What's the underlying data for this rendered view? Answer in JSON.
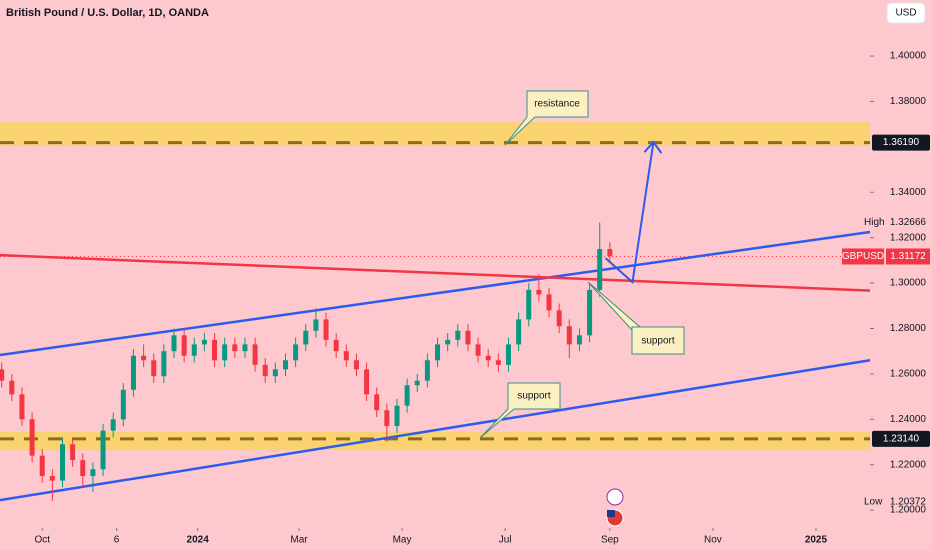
{
  "chart_data": {
    "type": "candlestick",
    "title": "British Pound / U.S. Dollar, 1D, OANDA",
    "currency": "USD",
    "symbol": "GBPUSD",
    "xlim": [
      -117,
      398
    ],
    "ylim": [
      1.193,
      1.4247
    ],
    "xticks": [
      {
        "value": -92,
        "label": "Oct"
      },
      {
        "value": -48,
        "label": "6"
      },
      {
        "value": 0,
        "label": "2024"
      },
      {
        "value": 60,
        "label": "Mar"
      },
      {
        "value": 121,
        "label": "May"
      },
      {
        "value": 182,
        "label": "Jul"
      },
      {
        "value": 244,
        "label": "Sep"
      },
      {
        "value": 305,
        "label": "Nov"
      },
      {
        "value": 366,
        "label": "2025"
      }
    ],
    "yticks": [
      {
        "value": 1.2,
        "label": "1.20000"
      },
      {
        "value": 1.22,
        "label": "1.22000"
      },
      {
        "value": 1.24,
        "label": "1.24000"
      },
      {
        "value": 1.26,
        "label": "1.26000"
      },
      {
        "value": 1.28,
        "label": "1.28000"
      },
      {
        "value": 1.3,
        "label": "1.30000"
      },
      {
        "value": 1.32,
        "label": "1.32000"
      },
      {
        "value": 1.34,
        "label": "1.34000"
      },
      {
        "value": 1.38,
        "label": "1.38000"
      },
      {
        "value": 1.4,
        "label": "1.40000"
      }
    ],
    "up_color": "#089981",
    "down_color": "#f23645",
    "x": [
      -116,
      -110,
      -104,
      -98,
      -92,
      -86,
      -80,
      -74,
      -68,
      -62,
      -56,
      -50,
      -44,
      -38,
      -32,
      -26,
      -20,
      -14,
      -8,
      -2,
      4,
      10,
      16,
      22,
      28,
      34,
      40,
      46,
      52,
      58,
      64,
      70,
      76,
      82,
      88,
      94,
      100,
      106,
      112,
      118,
      124,
      130,
      136,
      142,
      148,
      154,
      160,
      166,
      172,
      178,
      184,
      190,
      196,
      202,
      208,
      214,
      220,
      226,
      232,
      238,
      244
    ],
    "candles": [
      [
        1.262,
        1.265,
        1.254,
        1.257
      ],
      [
        1.257,
        1.26,
        1.248,
        1.251
      ],
      [
        1.251,
        1.254,
        1.237,
        1.24
      ],
      [
        1.24,
        1.243,
        1.221,
        1.224
      ],
      [
        1.224,
        1.227,
        1.212,
        1.215
      ],
      [
        1.215,
        1.218,
        1.204,
        1.213
      ],
      [
        1.213,
        1.232,
        1.21,
        1.229
      ],
      [
        1.229,
        1.232,
        1.219,
        1.222
      ],
      [
        1.222,
        1.225,
        1.21,
        1.215
      ],
      [
        1.215,
        1.221,
        1.208,
        1.218
      ],
      [
        1.218,
        1.238,
        1.215,
        1.235
      ],
      [
        1.235,
        1.243,
        1.232,
        1.24
      ],
      [
        1.24,
        1.256,
        1.237,
        1.253
      ],
      [
        1.253,
        1.271,
        1.25,
        1.268
      ],
      [
        1.268,
        1.273,
        1.263,
        1.266
      ],
      [
        1.266,
        1.269,
        1.256,
        1.259
      ],
      [
        1.259,
        1.273,
        1.256,
        1.27
      ],
      [
        1.27,
        1.28,
        1.267,
        1.277
      ],
      [
        1.277,
        1.28,
        1.265,
        1.268
      ],
      [
        1.268,
        1.276,
        1.265,
        1.273
      ],
      [
        1.273,
        1.278,
        1.27,
        1.275
      ],
      [
        1.275,
        1.278,
        1.263,
        1.266
      ],
      [
        1.266,
        1.276,
        1.263,
        1.273
      ],
      [
        1.273,
        1.276,
        1.267,
        1.27
      ],
      [
        1.27,
        1.276,
        1.267,
        1.273
      ],
      [
        1.273,
        1.276,
        1.261,
        1.264
      ],
      [
        1.264,
        1.267,
        1.256,
        1.259
      ],
      [
        1.259,
        1.265,
        1.256,
        1.262
      ],
      [
        1.262,
        1.269,
        1.259,
        1.266
      ],
      [
        1.266,
        1.276,
        1.263,
        1.273
      ],
      [
        1.273,
        1.282,
        1.27,
        1.279
      ],
      [
        1.279,
        1.289,
        1.276,
        1.284
      ],
      [
        1.284,
        1.287,
        1.272,
        1.275
      ],
      [
        1.275,
        1.278,
        1.267,
        1.27
      ],
      [
        1.27,
        1.273,
        1.263,
        1.266
      ],
      [
        1.266,
        1.269,
        1.259,
        1.262
      ],
      [
        1.262,
        1.265,
        1.248,
        1.251
      ],
      [
        1.251,
        1.254,
        1.241,
        1.244
      ],
      [
        1.244,
        1.247,
        1.23,
        1.237
      ],
      [
        1.237,
        1.249,
        1.234,
        1.246
      ],
      [
        1.246,
        1.258,
        1.243,
        1.255
      ],
      [
        1.255,
        1.26,
        1.252,
        1.257
      ],
      [
        1.257,
        1.269,
        1.254,
        1.266
      ],
      [
        1.266,
        1.276,
        1.263,
        1.273
      ],
      [
        1.273,
        1.278,
        1.27,
        1.275
      ],
      [
        1.275,
        1.282,
        1.272,
        1.279
      ],
      [
        1.279,
        1.282,
        1.27,
        1.273
      ],
      [
        1.273,
        1.276,
        1.265,
        1.268
      ],
      [
        1.268,
        1.271,
        1.263,
        1.266
      ],
      [
        1.266,
        1.269,
        1.261,
        1.264
      ],
      [
        1.264,
        1.276,
        1.261,
        1.273
      ],
      [
        1.273,
        1.287,
        1.27,
        1.284
      ],
      [
        1.284,
        1.3,
        1.281,
        1.297
      ],
      [
        1.297,
        1.304,
        1.292,
        1.295
      ],
      [
        1.295,
        1.298,
        1.285,
        1.288
      ],
      [
        1.288,
        1.291,
        1.278,
        1.281
      ],
      [
        1.281,
        1.284,
        1.267,
        1.273
      ],
      [
        1.273,
        1.28,
        1.27,
        1.277
      ],
      [
        1.277,
        1.3,
        1.274,
        1.297
      ],
      [
        1.297,
        1.32666,
        1.294,
        1.315
      ],
      [
        1.315,
        1.318,
        1.309,
        1.312
      ]
    ],
    "zones": [
      {
        "range": [
          1.3604,
          1.3709
        ],
        "level": {
          "value": 1.3619,
          "label": "1.36190"
        }
      },
      {
        "range": [
          1.2264,
          1.2344
        ],
        "level": {
          "value": 1.2314,
          "label": "1.23140"
        }
      }
    ],
    "zone_color": "#f9d35f",
    "trendlines": [
      {
        "color": "#2d5bf0",
        "x": [
          -117,
          398
        ],
        "y": [
          1.2683,
          1.3225
        ]
      },
      {
        "color": "#2d5bf0",
        "x": [
          -117,
          398
        ],
        "y": [
          1.2044,
          1.266
        ]
      },
      {
        "color": "#f23645",
        "x": [
          -117,
          398
        ],
        "y": [
          1.3123,
          1.2967
        ]
      }
    ],
    "projection": {
      "color": "#2d5bf0",
      "x": [
        241.4,
        257.4,
        269.8
      ],
      "y": [
        1.311,
        1.3004,
        1.3621
      ]
    },
    "last_price": {
      "value": 1.31172,
      "label": "1.31172"
    },
    "high": {
      "name": "High",
      "value": 1.32666,
      "label": "1.32666"
    },
    "low": {
      "name": "Low",
      "value": 1.20372,
      "label": "1.20372"
    },
    "annotations": [
      "resistance",
      "support",
      "support"
    ]
  }
}
